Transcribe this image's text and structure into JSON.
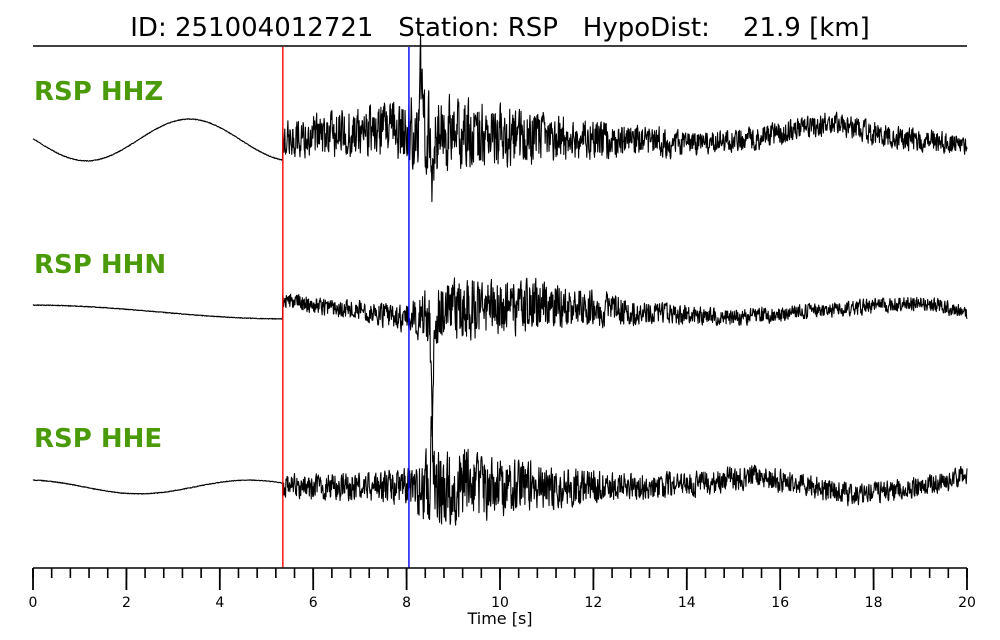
{
  "figure": {
    "title": "ID: 251004012721   Station: RSP   HypoDist:    21.9 [km]"
  },
  "chart_data": {
    "type": "line",
    "title": "ID: 251004012721   Station: RSP   HypoDist:    21.9 [km]",
    "xlabel": "Time [s]",
    "ylabel": "",
    "xlim": [
      0,
      20
    ],
    "x_ticks": [
      "0",
      "2",
      "4",
      "6",
      "8",
      "10",
      "12",
      "14",
      "16",
      "18",
      "20"
    ],
    "x_minor_tick_step": 0.4,
    "grid": false,
    "picks": [
      {
        "name": "P",
        "time": 5.35,
        "color": "#ff0000"
      },
      {
        "name": "S",
        "time": 8.05,
        "color": "#0000ff"
      }
    ],
    "label_color": "#4a9a0a",
    "trace_color": "#000000",
    "series": [
      {
        "name": "RSP HHZ",
        "pre_event_wave": {
          "amplitude": 0.55,
          "period_s": 4.4,
          "phase_s": 0.05
        },
        "envelope": [
          [
            5.35,
            0.45
          ],
          [
            6.5,
            0.6
          ],
          [
            7.6,
            0.7
          ],
          [
            8.3,
            1.0
          ],
          [
            9.2,
            0.9
          ],
          [
            10.5,
            0.7
          ],
          [
            12.5,
            0.45
          ],
          [
            14.5,
            0.3
          ],
          [
            16.5,
            0.3
          ],
          [
            18.5,
            0.3
          ],
          [
            20,
            0.25
          ]
        ],
        "coda_trend": [
          [
            5.35,
            0.0
          ],
          [
            7.5,
            0.25
          ],
          [
            9.5,
            0.1
          ],
          [
            12,
            0.0
          ],
          [
            14,
            -0.1
          ],
          [
            15.5,
            0.05
          ],
          [
            17,
            0.45
          ],
          [
            18.5,
            0.05
          ],
          [
            20,
            -0.1
          ]
        ],
        "spikes": [
          [
            8.3,
            1.6
          ],
          [
            8.55,
            -1.15
          ]
        ]
      },
      {
        "name": "RSP HHN",
        "pre_event_wave": {
          "amplitude": 0.18,
          "period_s": 10.7,
          "phase_s": 2.7
        },
        "envelope": [
          [
            5.35,
            0.2
          ],
          [
            7.0,
            0.25
          ],
          [
            8.0,
            0.35
          ],
          [
            8.5,
            0.8
          ],
          [
            10.5,
            0.7
          ],
          [
            11.5,
            0.55
          ],
          [
            13.5,
            0.25
          ],
          [
            16,
            0.2
          ],
          [
            20,
            0.18
          ]
        ],
        "coda_trend": [
          [
            5.35,
            0.3
          ],
          [
            7,
            0.05
          ],
          [
            8,
            -0.2
          ],
          [
            9.5,
            0.1
          ],
          [
            11,
            0.2
          ],
          [
            13,
            0.0
          ],
          [
            15,
            -0.15
          ],
          [
            17,
            0.05
          ],
          [
            19,
            0.25
          ],
          [
            20,
            0.0
          ]
        ],
        "spikes": [
          [
            8.55,
            -2.4
          ]
        ]
      },
      {
        "name": "RSP HHE",
        "pre_event_wave": {
          "amplitude": 0.18,
          "period_s": 4.7,
          "phase_s": 1.1
        },
        "envelope": [
          [
            5.35,
            0.3
          ],
          [
            7.5,
            0.4
          ],
          [
            8.1,
            0.5
          ],
          [
            8.5,
            1.0
          ],
          [
            9.5,
            0.85
          ],
          [
            11,
            0.55
          ],
          [
            12.5,
            0.35
          ],
          [
            15,
            0.3
          ],
          [
            20,
            0.25
          ]
        ],
        "coda_trend": [
          [
            5.35,
            0.0
          ],
          [
            8,
            0.0
          ],
          [
            10,
            0.05
          ],
          [
            12,
            0.0
          ],
          [
            14,
            0.05
          ],
          [
            15.5,
            0.3
          ],
          [
            17.5,
            -0.2
          ],
          [
            19,
            0.0
          ],
          [
            20,
            0.3
          ]
        ],
        "spikes": [
          [
            8.55,
            1.7
          ]
        ]
      }
    ]
  }
}
